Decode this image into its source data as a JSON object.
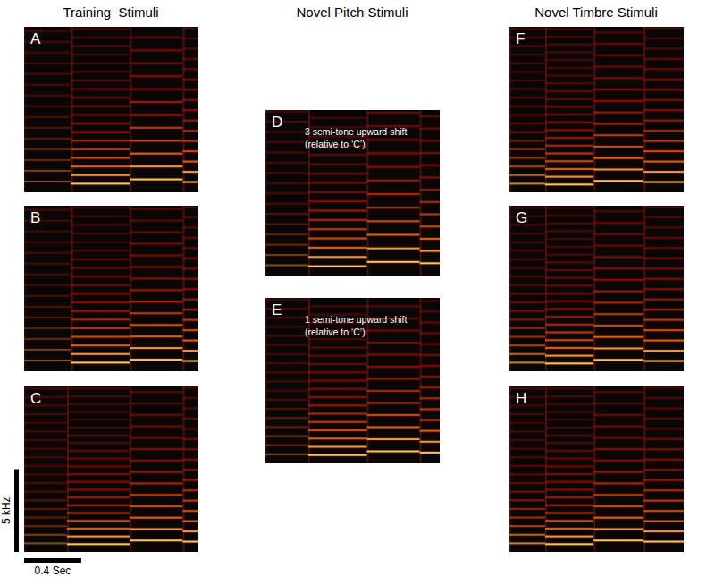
{
  "chart_data": {
    "type": "spectrogram",
    "time_range_s": [
      0,
      1.22
    ],
    "freq_range_hz": [
      0,
      10000
    ],
    "scale_bars": {
      "frequency": {
        "value": 5000,
        "label": "5 kHz"
      },
      "time": {
        "value": 0.4,
        "label": "0.4 Sec"
      }
    },
    "columns": [
      {
        "title": "Training  Stimuli",
        "panels": [
          {
            "letter": "A",
            "notes": [
              {
                "t0": 0.0,
                "t1": 0.33,
                "f0": 650,
                "amplitude": 0.35
              },
              {
                "t0": 0.33,
                "t1": 0.74,
                "f0": 520,
                "amplitude": 0.9
              },
              {
                "t0": 0.74,
                "t1": 1.11,
                "f0": 780,
                "amplitude": 0.9
              },
              {
                "t0": 1.11,
                "t1": 1.22,
                "f0": 620,
                "amplitude": 0.9
              }
            ]
          },
          {
            "letter": "B",
            "notes": [
              {
                "t0": 0.0,
                "t1": 0.33,
                "f0": 650,
                "amplitude": 0.35
              },
              {
                "t0": 0.33,
                "t1": 0.74,
                "f0": 520,
                "amplitude": 0.9
              },
              {
                "t0": 0.74,
                "t1": 1.11,
                "f0": 700,
                "amplitude": 0.9
              },
              {
                "t0": 1.11,
                "t1": 1.22,
                "f0": 620,
                "amplitude": 0.9
              }
            ]
          },
          {
            "letter": "C",
            "notes": [
              {
                "t0": 0.0,
                "t1": 0.3,
                "f0": 520,
                "amplitude": 0.35
              },
              {
                "t0": 0.3,
                "t1": 0.74,
                "f0": 470,
                "amplitude": 0.9
              },
              {
                "t0": 0.74,
                "t1": 1.11,
                "f0": 690,
                "amplitude": 0.9
              },
              {
                "t0": 1.11,
                "t1": 1.22,
                "f0": 620,
                "amplitude": 0.9
              }
            ]
          }
        ]
      },
      {
        "title": "Novel Pitch Stimuli",
        "panels": [
          {
            "letter": "D",
            "annotation": [
              "3 semi-tone upward shift",
              "(relative to ‘C’)"
            ],
            "notes": [
              {
                "t0": 0.0,
                "t1": 0.3,
                "f0": 620,
                "amplitude": 0.35
              },
              {
                "t0": 0.3,
                "t1": 0.71,
                "f0": 560,
                "amplitude": 0.9
              },
              {
                "t0": 0.71,
                "t1": 1.08,
                "f0": 820,
                "amplitude": 0.9
              },
              {
                "t0": 1.08,
                "t1": 1.22,
                "f0": 740,
                "amplitude": 0.9
              }
            ]
          },
          {
            "letter": "E",
            "annotation": [
              "1 semi-tone upward shift",
              "(relative to ‘C’)"
            ],
            "notes": [
              {
                "t0": 0.0,
                "t1": 0.3,
                "f0": 550,
                "amplitude": 0.35
              },
              {
                "t0": 0.3,
                "t1": 0.71,
                "f0": 500,
                "amplitude": 0.9
              },
              {
                "t0": 0.71,
                "t1": 1.08,
                "f0": 730,
                "amplitude": 0.9
              },
              {
                "t0": 1.08,
                "t1": 1.22,
                "f0": 655,
                "amplitude": 0.9
              }
            ]
          }
        ]
      },
      {
        "title": "Novel Timbre Stimuli",
        "panels": [
          {
            "letter": "F",
            "notes": [
              {
                "t0": 0.0,
                "t1": 0.25,
                "f0": 520,
                "amplitude": 0.6
              },
              {
                "t0": 0.25,
                "t1": 0.59,
                "f0": 470,
                "amplitude": 0.9
              },
              {
                "t0": 0.59,
                "t1": 0.94,
                "f0": 690,
                "amplitude": 0.9
              },
              {
                "t0": 0.94,
                "t1": 1.22,
                "f0": 620,
                "amplitude": 0.9
              }
            ]
          },
          {
            "letter": "G",
            "notes": [
              {
                "t0": 0.0,
                "t1": 0.25,
                "f0": 520,
                "amplitude": 0.6
              },
              {
                "t0": 0.25,
                "t1": 0.59,
                "f0": 470,
                "amplitude": 0.9
              },
              {
                "t0": 0.59,
                "t1": 0.94,
                "f0": 690,
                "amplitude": 0.9
              },
              {
                "t0": 0.94,
                "t1": 1.22,
                "f0": 620,
                "amplitude": 0.9
              }
            ]
          },
          {
            "letter": "H",
            "notes": [
              {
                "t0": 0.0,
                "t1": 0.25,
                "f0": 520,
                "amplitude": 0.6
              },
              {
                "t0": 0.25,
                "t1": 0.59,
                "f0": 470,
                "amplitude": 0.9
              },
              {
                "t0": 0.59,
                "t1": 0.94,
                "f0": 690,
                "amplitude": 0.9
              },
              {
                "t0": 0.94,
                "t1": 1.22,
                "f0": 620,
                "amplitude": 0.9
              }
            ]
          }
        ]
      }
    ]
  }
}
